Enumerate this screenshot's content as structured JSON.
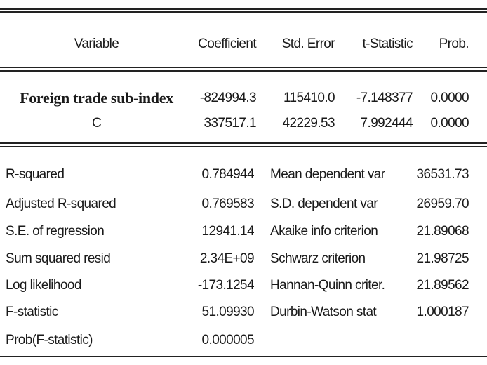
{
  "table": {
    "header": [
      "Variable",
      "Coefficient",
      "Std. Error",
      "t-Statistic",
      "Prob."
    ],
    "rows": [
      [
        "Foreign trade sub-index",
        "-824994.3",
        "115410.0",
        "-7.148377",
        "0.0000"
      ],
      [
        "C",
        "337517.1",
        "42229.53",
        "7.992444",
        "0.0000"
      ]
    ]
  },
  "stats": [
    [
      "R-squared",
      "0.784944",
      "Mean dependent var",
      "36531.73"
    ],
    [
      "Adjusted R-squared",
      "0.769583",
      "S.D. dependent var",
      "26959.70"
    ],
    [
      "S.E. of regression",
      "12941.14",
      "Akaike info criterion",
      "21.89068"
    ],
    [
      "Sum squared resid",
      "2.34E+09",
      "Schwarz criterion",
      "21.98725"
    ],
    [
      "Log likelihood",
      "-173.1254",
      "Hannan-Quinn criter.",
      "21.89562"
    ],
    [
      "F-statistic",
      "51.09930",
      "Durbin-Watson stat",
      "1.000187"
    ],
    [
      "Prob(F-statistic)",
      "0.000005"
    ]
  ]
}
